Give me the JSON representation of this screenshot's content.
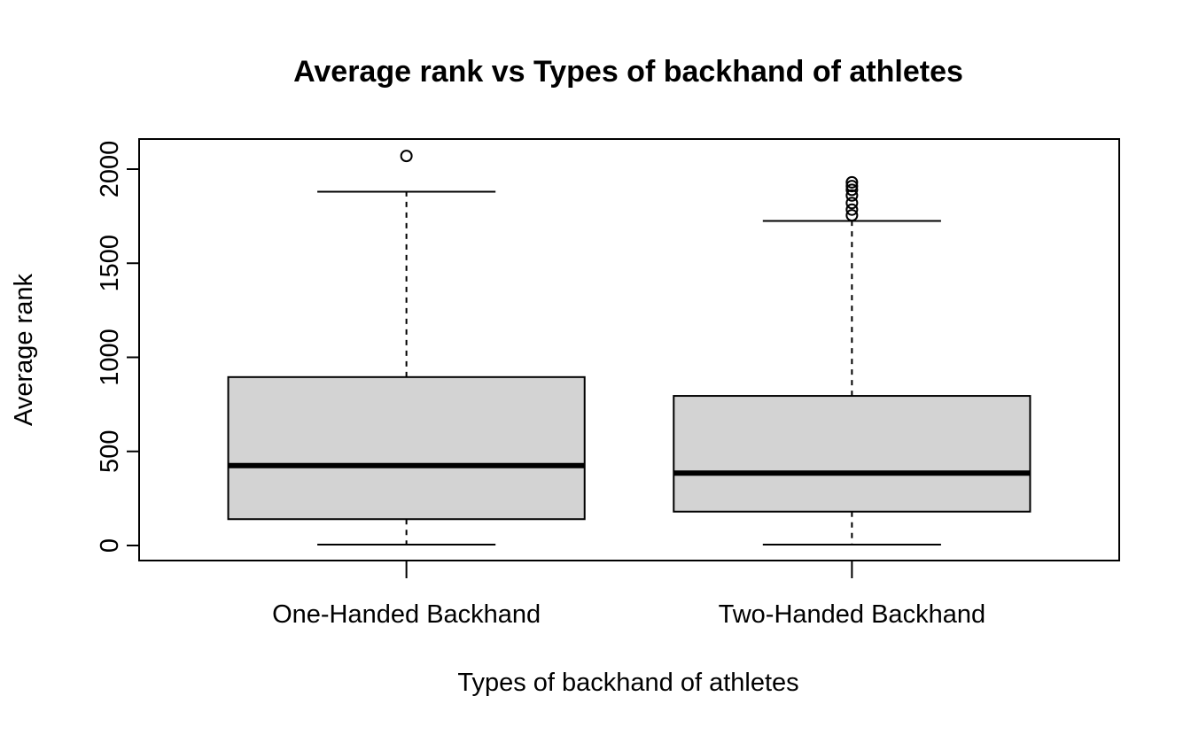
{
  "chart_data": {
    "type": "boxplot",
    "title": "Average rank vs Types of backhand of athletes",
    "xlabel": "Types of backhand of athletes",
    "ylabel": "Average rank",
    "ylim": [
      -80,
      2160
    ],
    "yticks": [
      "0",
      "500",
      "1000",
      "1500",
      "2000"
    ],
    "ytick_values": [
      0,
      500,
      1000,
      1500,
      2000
    ],
    "categories": [
      "One-Handed Backhand",
      "Two-Handed Backhand"
    ],
    "grid": false,
    "legend": "none",
    "box_fill": "#d3d3d3",
    "line_color": "#000000",
    "boxes": [
      {
        "category": "One-Handed Backhand",
        "whisker_low": 5,
        "q1": 140,
        "median": 425,
        "q3": 895,
        "whisker_high": 1880,
        "outliers": [
          2070
        ]
      },
      {
        "category": "Two-Handed Backhand",
        "whisker_low": 5,
        "q1": 180,
        "median": 385,
        "q3": 795,
        "whisker_high": 1725,
        "outliers": [
          1755,
          1785,
          1820,
          1860,
          1890,
          1910,
          1930
        ]
      }
    ]
  }
}
